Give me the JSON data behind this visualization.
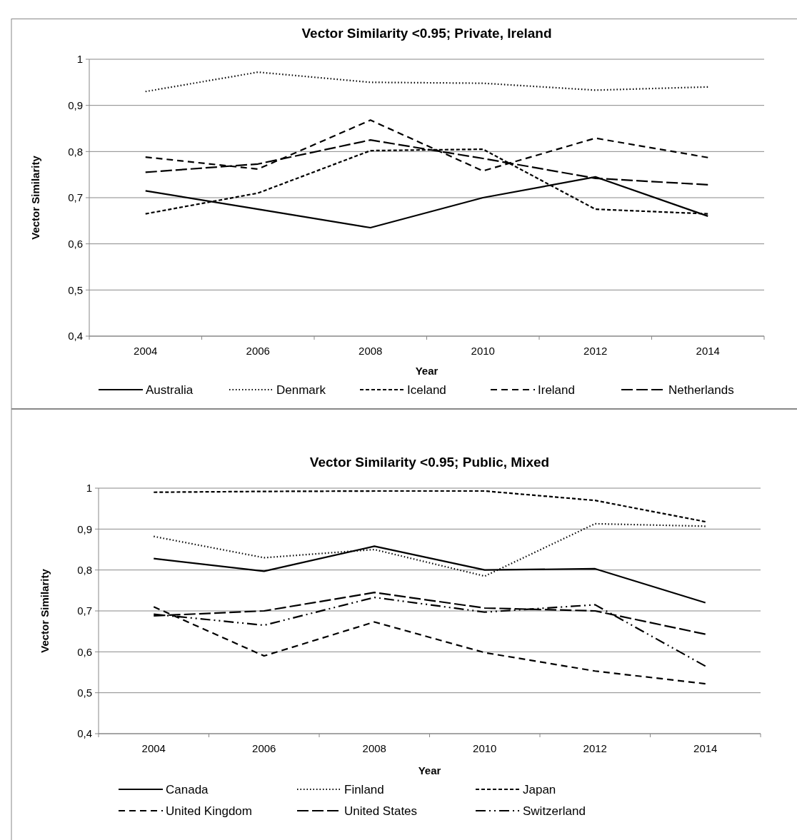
{
  "chart_data": [
    {
      "type": "line",
      "title": "Vector Similarity <0.95; Private, Ireland",
      "xlabel": "Year",
      "ylabel": "Vector Similarity",
      "categories": [
        "2004",
        "2006",
        "2008",
        "2010",
        "2012",
        "2014"
      ],
      "ylim": [
        0.4,
        1
      ],
      "yticks": [
        {
          "value": 0.4,
          "label": "0,4"
        },
        {
          "value": 0.5,
          "label": "0,5"
        },
        {
          "value": 0.6,
          "label": "0,6"
        },
        {
          "value": 0.7,
          "label": "0,7"
        },
        {
          "value": 0.8,
          "label": "0,8"
        },
        {
          "value": 0.9,
          "label": "0,9"
        },
        {
          "value": 1,
          "label": "1"
        }
      ],
      "grid": "y",
      "legend": "bottom",
      "marker": "none",
      "series": [
        {
          "name": "Australia",
          "color": "#000000",
          "line_style": "solid",
          "values": [
            0.715,
            0.675,
            0.635,
            0.7,
            0.745,
            0.66
          ]
        },
        {
          "name": "Denmark",
          "color": "#000000",
          "line_style": "dotted",
          "values": [
            0.93,
            0.972,
            0.95,
            0.948,
            0.933,
            0.94
          ]
        },
        {
          "name": "Iceland",
          "color": "#000000",
          "line_style": "dashed",
          "values": [
            0.665,
            0.71,
            0.802,
            0.805,
            0.675,
            0.665
          ]
        },
        {
          "name": "Ireland",
          "color": "#000000",
          "line_style": "dash",
          "values": [
            0.788,
            0.762,
            0.868,
            0.758,
            0.829,
            0.787
          ]
        },
        {
          "name": "Netherlands",
          "color": "#000000",
          "line_style": "longdash",
          "values": [
            0.755,
            0.773,
            0.825,
            0.785,
            0.742,
            0.728
          ]
        }
      ]
    },
    {
      "type": "line",
      "title": "Vector Similarity <0.95; Public, Mixed",
      "xlabel": "Year",
      "ylabel": "Vector Similarity",
      "categories": [
        "2004",
        "2006",
        "2008",
        "2010",
        "2012",
        "2014"
      ],
      "ylim": [
        0.4,
        1
      ],
      "yticks": [
        {
          "value": 0.4,
          "label": "0,4"
        },
        {
          "value": 0.5,
          "label": "0,5"
        },
        {
          "value": 0.6,
          "label": "0,6"
        },
        {
          "value": 0.7,
          "label": "0,7"
        },
        {
          "value": 0.8,
          "label": "0,8"
        },
        {
          "value": 0.9,
          "label": "0,9"
        },
        {
          "value": 1,
          "label": "1"
        }
      ],
      "grid": "y",
      "legend": "bottom",
      "marker": "none",
      "series": [
        {
          "name": "Canada",
          "color": "#000000",
          "line_style": "solid",
          "values": [
            0.828,
            0.797,
            0.858,
            0.8,
            0.803,
            0.72
          ]
        },
        {
          "name": "Finland",
          "color": "#000000",
          "line_style": "dotted",
          "values": [
            0.882,
            0.83,
            0.85,
            0.785,
            0.913,
            0.907
          ]
        },
        {
          "name": "Japan",
          "color": "#000000",
          "line_style": "dashed",
          "values": [
            0.99,
            0.992,
            0.993,
            0.993,
            0.97,
            0.918
          ]
        },
        {
          "name": "United Kingdom",
          "color": "#000000",
          "line_style": "dash",
          "values": [
            0.71,
            0.59,
            0.673,
            0.598,
            0.553,
            0.522
          ]
        },
        {
          "name": "United States",
          "color": "#000000",
          "line_style": "longdash",
          "values": [
            0.688,
            0.7,
            0.745,
            0.707,
            0.7,
            0.643
          ]
        },
        {
          "name": "Switzerland",
          "color": "#000000",
          "line_style": "dashdotdot",
          "values": [
            0.692,
            0.665,
            0.733,
            0.697,
            0.715,
            0.565
          ]
        }
      ]
    }
  ]
}
